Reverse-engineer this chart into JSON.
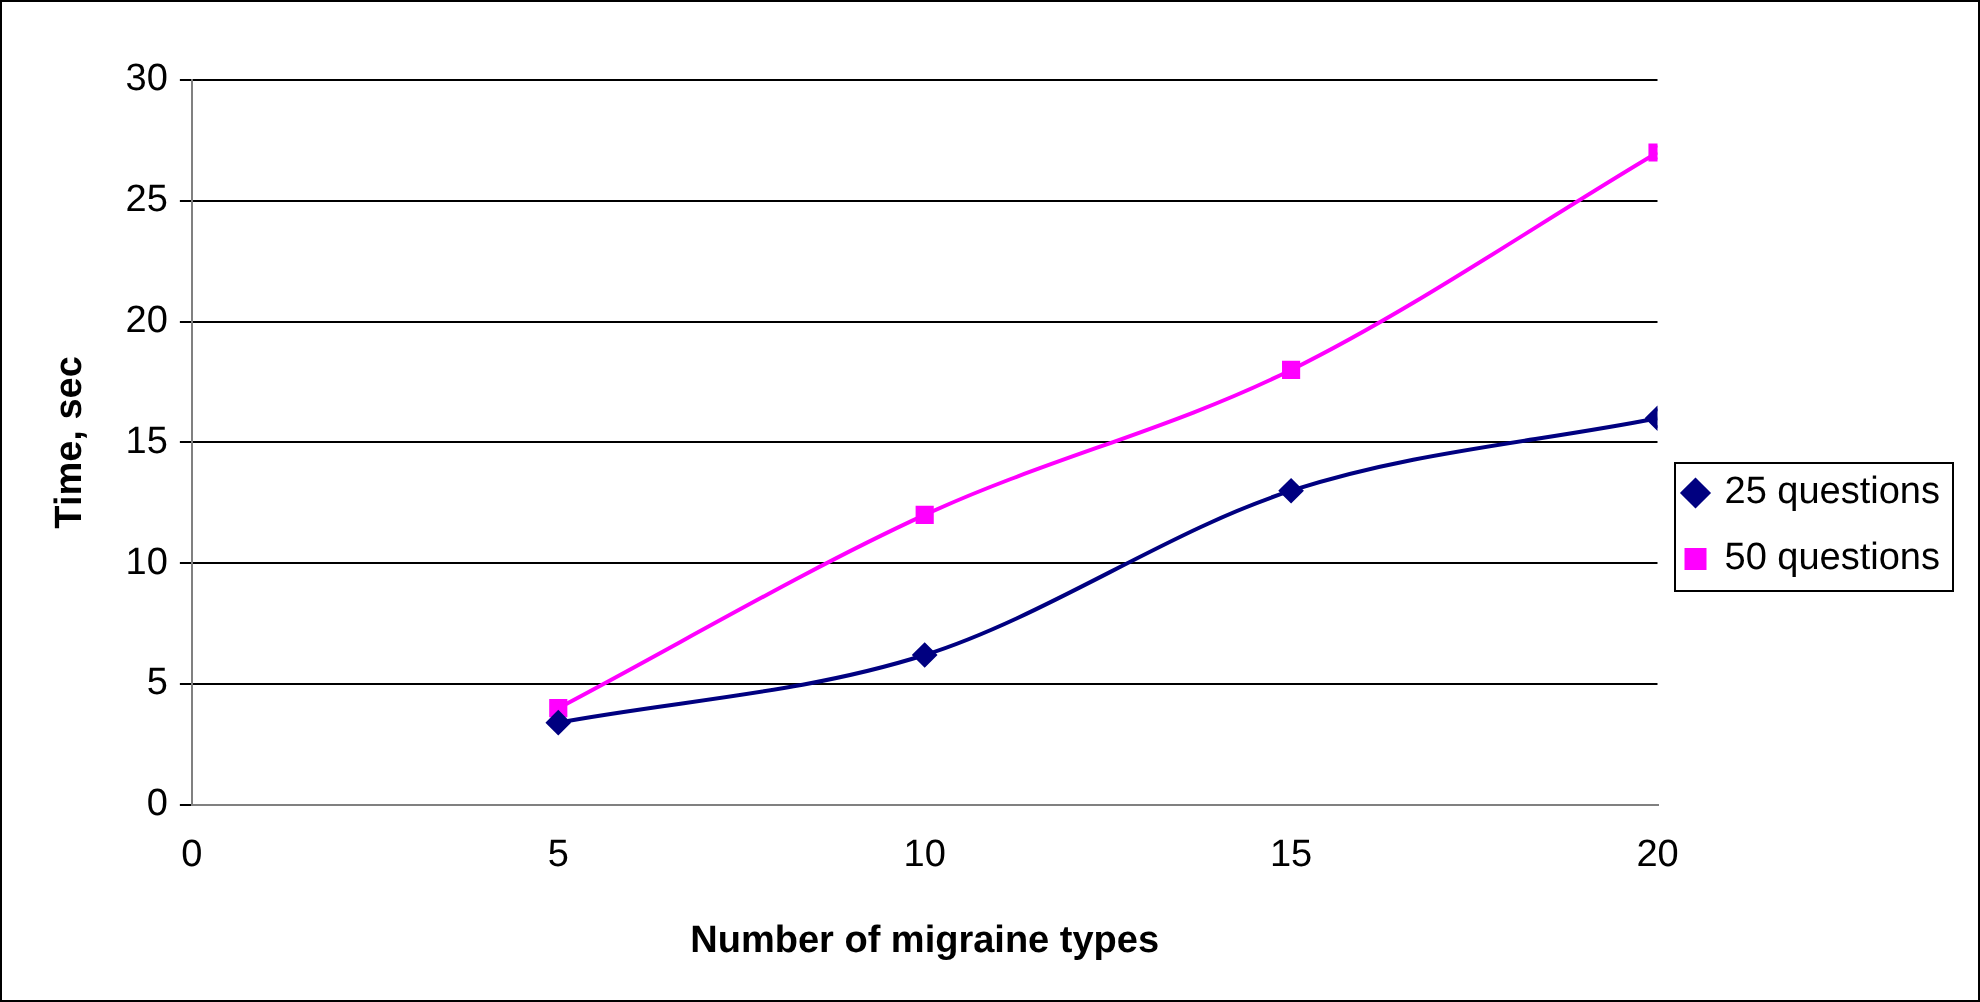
{
  "chart_data": {
    "type": "line",
    "xlabel": "Number of migraine types",
    "ylabel": "Time, sec",
    "x": [
      5,
      10,
      15,
      20
    ],
    "series": [
      {
        "name": "25 questions",
        "color": "#000080",
        "marker": "diamond",
        "values": [
          3.4,
          6.2,
          13,
          16
        ]
      },
      {
        "name": "50 questions",
        "color": "#ff00ff",
        "marker": "square",
        "values": [
          4,
          12,
          18,
          27
        ]
      }
    ],
    "xlim": [
      0,
      20
    ],
    "xticks": [
      0,
      5,
      10,
      15,
      20
    ],
    "ylim": [
      0,
      30
    ],
    "yticks": [
      0,
      5,
      10,
      15,
      20,
      25,
      30
    ],
    "grid": "y",
    "legend": "right",
    "line_style": "solid"
  }
}
